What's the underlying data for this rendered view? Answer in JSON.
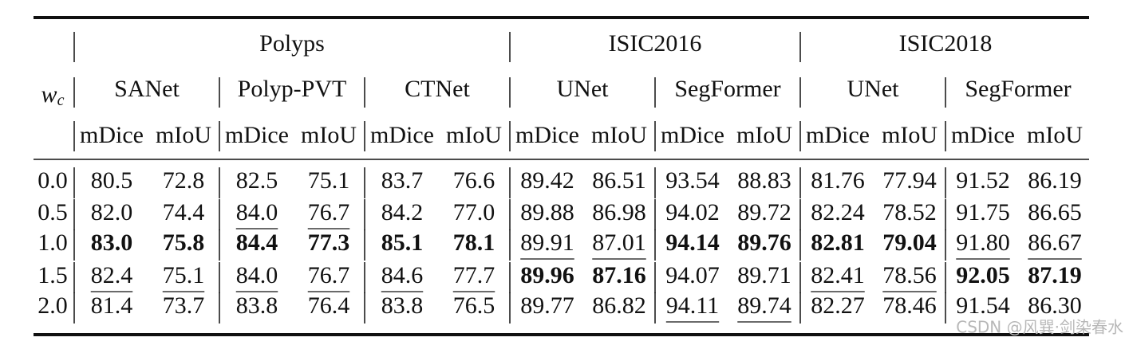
{
  "table": {
    "row_label": {
      "symbol": "w",
      "subscript": "c"
    },
    "groups": [
      {
        "name": "Polyps",
        "models": [
          "SANet",
          "Polyp-PVT",
          "CTNet"
        ]
      },
      {
        "name": "ISIC2016",
        "models": [
          "UNet",
          "SegFormer"
        ]
      },
      {
        "name": "ISIC2018",
        "models": [
          "UNet",
          "SegFormer"
        ]
      }
    ],
    "metrics": [
      "mDice",
      "mIoU"
    ],
    "rows": [
      {
        "w_c": "0.0",
        "values": [
          "80.5",
          "72.8",
          "82.5",
          "75.1",
          "83.7",
          "76.6",
          "89.42",
          "86.51",
          "93.54",
          "88.83",
          "81.76",
          "77.94",
          "91.52",
          "86.19"
        ]
      },
      {
        "w_c": "0.5",
        "values": [
          "82.0",
          "74.4",
          "84.0",
          "76.7",
          "84.2",
          "77.0",
          "89.88",
          "86.98",
          "94.02",
          "89.72",
          "82.24",
          "78.52",
          "91.75",
          "86.65"
        ],
        "underline": [
          2,
          3
        ]
      },
      {
        "w_c": "1.0",
        "values": [
          "83.0",
          "75.8",
          "84.4",
          "77.3",
          "85.1",
          "78.1",
          "89.91",
          "87.01",
          "94.14",
          "89.76",
          "82.81",
          "79.04",
          "91.80",
          "86.67"
        ],
        "bold": [
          0,
          1,
          2,
          3,
          4,
          5,
          8,
          9,
          10,
          11
        ],
        "underline": [
          6,
          7,
          12,
          13
        ]
      },
      {
        "w_c": "1.5",
        "values": [
          "82.4",
          "75.1",
          "84.0",
          "76.7",
          "84.6",
          "77.7",
          "89.96",
          "87.16",
          "94.07",
          "89.71",
          "82.41",
          "78.56",
          "92.05",
          "87.19"
        ],
        "bold": [
          6,
          7,
          12,
          13
        ],
        "underline": [
          0,
          1,
          2,
          3,
          4,
          5,
          10,
          11
        ]
      },
      {
        "w_c": "2.0",
        "values": [
          "81.4",
          "73.7",
          "83.8",
          "76.4",
          "83.8",
          "76.5",
          "89.77",
          "86.82",
          "94.11",
          "89.74",
          "82.27",
          "78.46",
          "91.54",
          "86.30"
        ],
        "underline": [
          8,
          9
        ]
      }
    ]
  },
  "watermark": "CSDN @风巽·剑染春水"
}
